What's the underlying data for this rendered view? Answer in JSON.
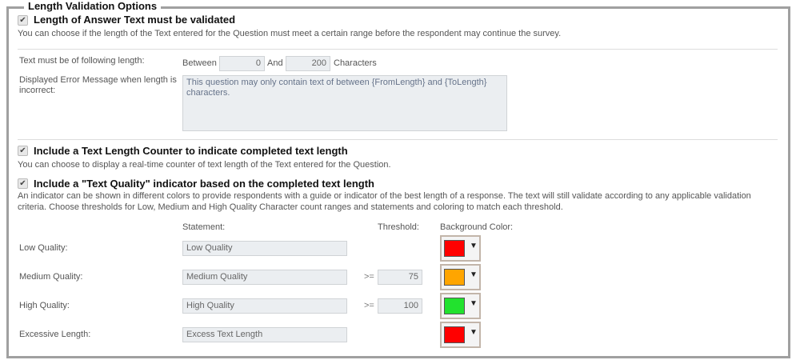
{
  "legend": "Length Validation Options",
  "validate": {
    "checked": true,
    "label": "Length of Answer Text must be validated",
    "desc": "You can choose if the length of the Text entered for the Question must meet a certain range before the respondent may continue the survey."
  },
  "length": {
    "label": "Text must be of following length:",
    "between": "Between",
    "from": "0",
    "and": "And",
    "to": "200",
    "characters": "Characters"
  },
  "error": {
    "label": "Displayed Error Message when length is incorrect:",
    "value": "This question may only contain text of between {FromLength} and {ToLength} characters."
  },
  "counter": {
    "checked": true,
    "label": "Include a Text Length Counter to indicate completed text length",
    "desc": "You can choose to display a real-time counter of text length of the Text entered for the Question."
  },
  "quality": {
    "checked": true,
    "label": "Include a \"Text Quality\" indicator based on the completed text length",
    "desc": "An indicator can be shown in different colors to provide respondents with a guide or indicator of the best length of a response. The text will still validate according to any applicable validation criteria. Choose thresholds for Low, Medium and High Quality Character count ranges and statements and coloring to match each threshold."
  },
  "headers": {
    "statement": "Statement:",
    "threshold": "Threshold:",
    "color": "Background Color:"
  },
  "rows": [
    {
      "label": "Low Quality:",
      "statement": "Low Quality",
      "op": "",
      "threshold": "",
      "color": "#ff0000"
    },
    {
      "label": "Medium Quality:",
      "statement": "Medium Quality",
      "op": ">=",
      "threshold": "75",
      "color": "#ffa500"
    },
    {
      "label": "High Quality:",
      "statement": "High Quality",
      "op": ">=",
      "threshold": "100",
      "color": "#22e22e"
    },
    {
      "label": "Excessive Length:",
      "statement": "Excess Text Length",
      "op": "",
      "threshold": "",
      "color": "#ff0000"
    }
  ]
}
